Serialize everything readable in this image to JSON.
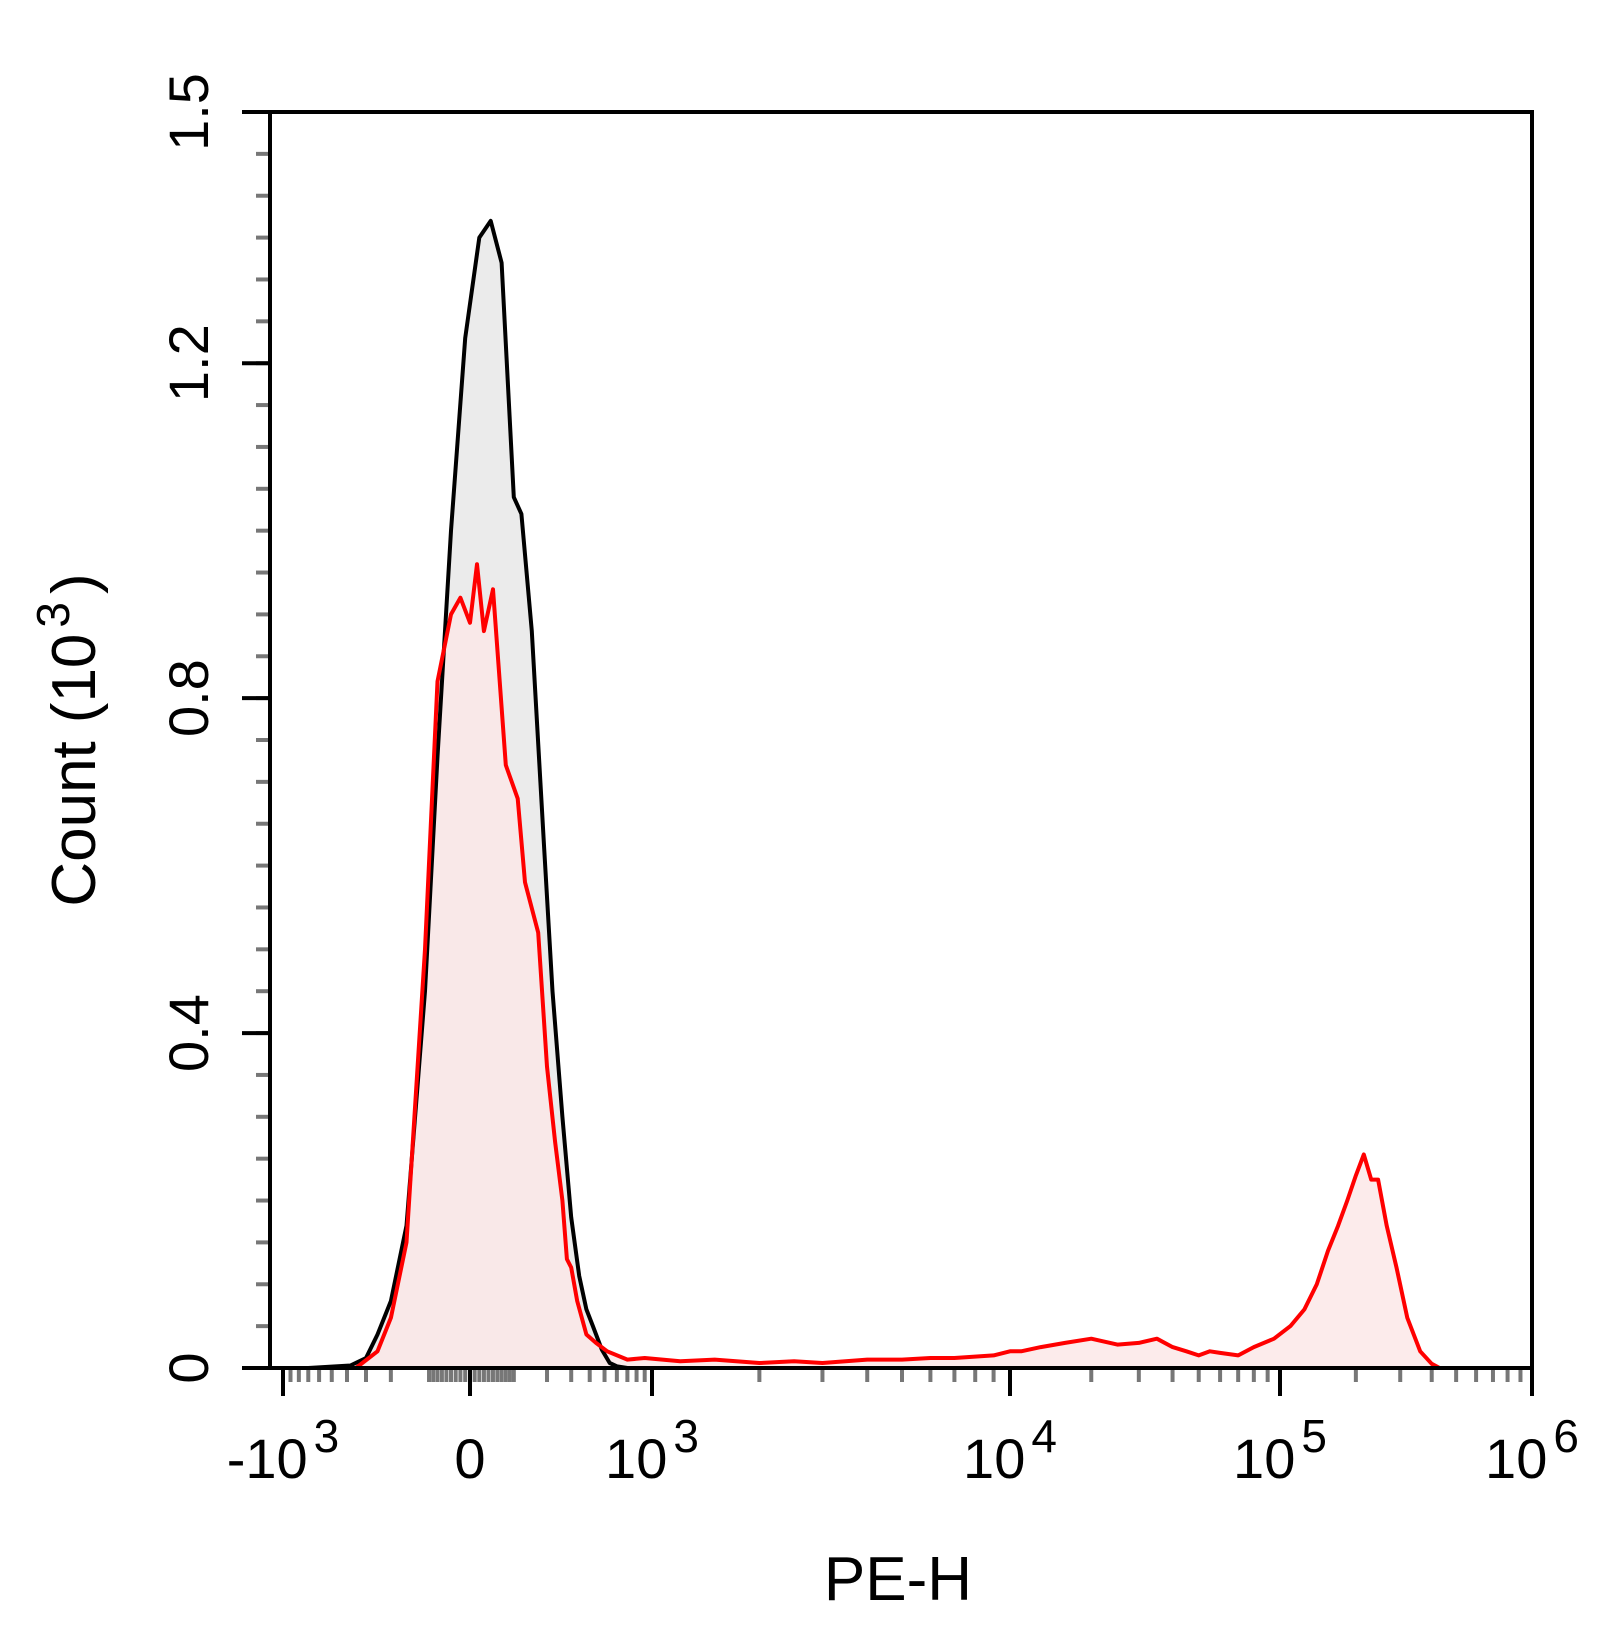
{
  "chart_data": {
    "type": "area",
    "xlabel": "PE-H",
    "ylabel_main": "Count",
    "ylabel_unit_base": "(10",
    "ylabel_unit_exp": "3",
    "ylabel_unit_close": ")",
    "x_scale": "biexponential (log with linear region around 0)",
    "ylim": [
      0,
      1.5
    ],
    "y_ticks": [
      {
        "value": 0,
        "label": "0"
      },
      {
        "value": 0.4,
        "label": "0.4"
      },
      {
        "value": 0.8,
        "label": "0.8"
      },
      {
        "value": 1.2,
        "label": "1.2"
      },
      {
        "value": 1.5,
        "label": "1.5"
      }
    ],
    "x_ticks": [
      {
        "value": -1000,
        "base": "-10",
        "exp": "3"
      },
      {
        "value": 0,
        "base": "0",
        "exp": ""
      },
      {
        "value": 1000,
        "base": "10",
        "exp": "3"
      },
      {
        "value": 10000,
        "base": "10",
        "exp": "4"
      },
      {
        "value": 100000,
        "base": "10",
        "exp": "5"
      },
      {
        "value": 1000000,
        "base": "10",
        "exp": "6"
      }
    ],
    "series": [
      {
        "color": "#000000",
        "fill": "#ebebeb",
        "points": [
          [
            -700,
            0
          ],
          [
            -380,
            0.003
          ],
          [
            -300,
            0.012
          ],
          [
            -250,
            0.04
          ],
          [
            -200,
            0.08
          ],
          [
            -150,
            0.17
          ],
          [
            -100,
            0.45
          ],
          [
            -70,
            0.73
          ],
          [
            -40,
            1.0
          ],
          [
            -10,
            1.23
          ],
          [
            20,
            1.35
          ],
          [
            45,
            1.37
          ],
          [
            70,
            1.32
          ],
          [
            100,
            1.04
          ],
          [
            120,
            1.02
          ],
          [
            150,
            0.88
          ],
          [
            190,
            0.62
          ],
          [
            220,
            0.45
          ],
          [
            260,
            0.3
          ],
          [
            300,
            0.18
          ],
          [
            340,
            0.11
          ],
          [
            380,
            0.07
          ],
          [
            420,
            0.05
          ],
          [
            480,
            0.022
          ],
          [
            540,
            0.006
          ],
          [
            600,
            0.002
          ],
          [
            700,
            0
          ]
        ]
      },
      {
        "color": "#ff0000",
        "fill": "#fbe8e8",
        "points": [
          [
            -350,
            0
          ],
          [
            -250,
            0.02
          ],
          [
            -200,
            0.06
          ],
          [
            -150,
            0.15
          ],
          [
            -100,
            0.5
          ],
          [
            -70,
            0.82
          ],
          [
            -40,
            0.9
          ],
          [
            -20,
            0.92
          ],
          [
            0,
            0.89
          ],
          [
            15,
            0.96
          ],
          [
            30,
            0.88
          ],
          [
            50,
            0.93
          ],
          [
            80,
            0.72
          ],
          [
            110,
            0.68
          ],
          [
            130,
            0.58
          ],
          [
            170,
            0.52
          ],
          [
            200,
            0.36
          ],
          [
            230,
            0.27
          ],
          [
            260,
            0.2
          ],
          [
            280,
            0.13
          ],
          [
            300,
            0.12
          ],
          [
            330,
            0.08
          ],
          [
            380,
            0.04
          ],
          [
            440,
            0.03
          ],
          [
            520,
            0.02
          ],
          [
            700,
            0.01
          ],
          [
            900,
            0.012
          ],
          [
            1200,
            0.008
          ],
          [
            1500,
            0.01
          ],
          [
            2000,
            0.006
          ],
          [
            2500,
            0.008
          ],
          [
            3000,
            0.006
          ],
          [
            4000,
            0.01
          ],
          [
            5000,
            0.01
          ],
          [
            6000,
            0.012
          ],
          [
            7000,
            0.012
          ],
          [
            9000,
            0.015
          ],
          [
            10000,
            0.02
          ],
          [
            11000,
            0.02
          ],
          [
            13000,
            0.025
          ],
          [
            16000,
            0.03
          ],
          [
            20000,
            0.035
          ],
          [
            25000,
            0.028
          ],
          [
            30000,
            0.03
          ],
          [
            35000,
            0.035
          ],
          [
            40000,
            0.025
          ],
          [
            45000,
            0.02
          ],
          [
            50000,
            0.015
          ],
          [
            55000,
            0.02
          ],
          [
            60000,
            0.018
          ],
          [
            70000,
            0.015
          ],
          [
            80000,
            0.025
          ],
          [
            95000,
            0.035
          ],
          [
            110000,
            0.05
          ],
          [
            125000,
            0.07
          ],
          [
            140000,
            0.1
          ],
          [
            155000,
            0.14
          ],
          [
            170000,
            0.17
          ],
          [
            185000,
            0.2
          ],
          [
            200000,
            0.23
          ],
          [
            215000,
            0.255
          ],
          [
            230000,
            0.225
          ],
          [
            245000,
            0.225
          ],
          [
            265000,
            0.17
          ],
          [
            290000,
            0.12
          ],
          [
            320000,
            0.06
          ],
          [
            360000,
            0.02
          ],
          [
            400000,
            0.005
          ],
          [
            430000,
            0
          ]
        ]
      }
    ]
  }
}
